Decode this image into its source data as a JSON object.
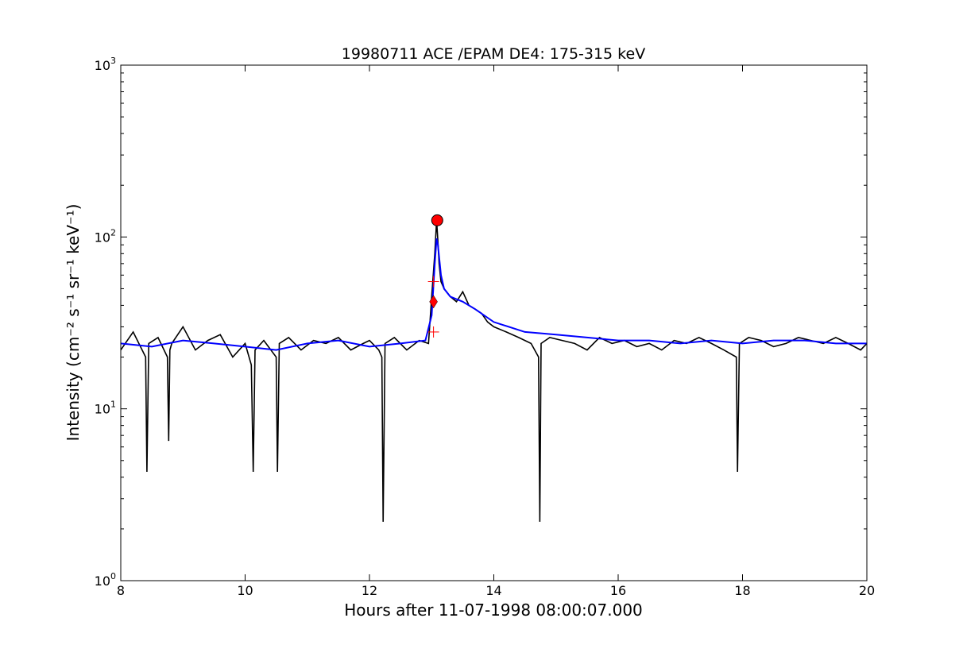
{
  "chart_data": {
    "type": "line",
    "title": "19980711 ACE /EPAM DE4: 175-315 keV",
    "xlabel": "Hours after 11-07-1998 08:00:07.000",
    "ylabel": "Intensity (cm⁻² s⁻¹ sr⁻¹ keV⁻¹)",
    "xlim": [
      8,
      20
    ],
    "ylim": [
      1,
      1000
    ],
    "yscale": "log",
    "grid": false,
    "x_ticks": [
      8,
      10,
      12,
      14,
      16,
      18,
      20
    ],
    "x_tick_labels": [
      "8",
      "10",
      "12",
      "14",
      "16",
      "18",
      "20"
    ],
    "y_ticks": [
      1,
      10,
      100,
      1000
    ],
    "y_tick_labels": [
      "1",
      "10",
      "100",
      "1000"
    ],
    "y_tick_bases": [
      "10",
      "10",
      "10",
      "10"
    ],
    "y_tick_exponents": [
      "0",
      "1",
      "2",
      "3"
    ],
    "series": [
      {
        "color": "#000000",
        "x": [
          8.0,
          8.2,
          8.4,
          8.42,
          8.45,
          8.6,
          8.75,
          8.77,
          8.79,
          8.82,
          9.0,
          9.2,
          9.4,
          9.6,
          9.8,
          10.0,
          10.1,
          10.13,
          10.16,
          10.3,
          10.5,
          10.52,
          10.55,
          10.7,
          10.9,
          11.1,
          11.3,
          11.5,
          11.7,
          11.9,
          12.0,
          12.15,
          12.2,
          12.22,
          12.25,
          12.4,
          12.6,
          12.8,
          12.95,
          13.0,
          13.05,
          13.08,
          13.1,
          13.12,
          13.15,
          13.2,
          13.3,
          13.4,
          13.5,
          13.6,
          13.7,
          13.8,
          13.9,
          14.0,
          14.2,
          14.4,
          14.6,
          14.72,
          14.74,
          14.76,
          14.9,
          15.1,
          15.3,
          15.5,
          15.7,
          15.9,
          16.1,
          16.3,
          16.5,
          16.7,
          16.9,
          17.1,
          17.3,
          17.5,
          17.7,
          17.9,
          17.92,
          17.95,
          18.1,
          18.3,
          18.5,
          18.7,
          18.9,
          19.1,
          19.3,
          19.5,
          19.7,
          19.9,
          20.0
        ],
        "y": [
          22,
          28,
          20,
          4.3,
          24,
          26,
          20,
          6.5,
          22,
          24,
          30,
          22,
          25,
          27,
          20,
          24,
          18,
          4.3,
          22,
          25,
          20,
          4.3,
          24,
          26,
          22,
          25,
          24,
          26,
          22,
          24,
          25,
          22,
          20,
          2.2,
          24,
          26,
          22,
          25,
          24,
          45,
          80,
          125,
          95,
          70,
          55,
          50,
          45,
          42,
          48,
          40,
          38,
          36,
          32,
          30,
          28,
          26,
          24,
          20,
          2.2,
          24,
          26,
          25,
          24,
          22,
          26,
          24,
          25,
          23,
          24,
          22,
          25,
          24,
          26,
          24,
          22,
          20,
          4.3,
          24,
          26,
          25,
          23,
          24,
          26,
          25,
          24,
          26,
          24,
          22,
          24
        ]
      },
      {
        "color": "#0000ff",
        "x": [
          8.0,
          8.5,
          9.0,
          9.5,
          10.0,
          10.5,
          11.0,
          11.5,
          12.0,
          12.5,
          12.9,
          13.0,
          13.05,
          13.08,
          13.1,
          13.15,
          13.2,
          13.3,
          13.5,
          13.7,
          14.0,
          14.5,
          15.0,
          15.5,
          16.0,
          16.5,
          17.0,
          17.5,
          18.0,
          18.5,
          19.0,
          19.5,
          20.0
        ],
        "y": [
          24,
          23,
          25,
          24,
          23,
          22,
          24,
          25,
          23,
          24,
          25,
          35,
          70,
          98,
          90,
          60,
          50,
          45,
          42,
          38,
          32,
          28,
          27,
          26,
          25,
          25,
          24,
          25,
          24,
          25,
          25,
          24,
          24
        ]
      }
    ],
    "markers": [
      {
        "shape": "circle",
        "color": "#ff0000",
        "x": 13.09,
        "y": 125
      },
      {
        "shape": "diamond",
        "color": "#ff0000",
        "x": 13.03,
        "y": 42
      },
      {
        "shape": "plus",
        "color": "#ff0000",
        "x": 13.03,
        "y": 55
      },
      {
        "shape": "plus",
        "color": "#ff0000",
        "x": 13.03,
        "y": 28
      }
    ]
  }
}
